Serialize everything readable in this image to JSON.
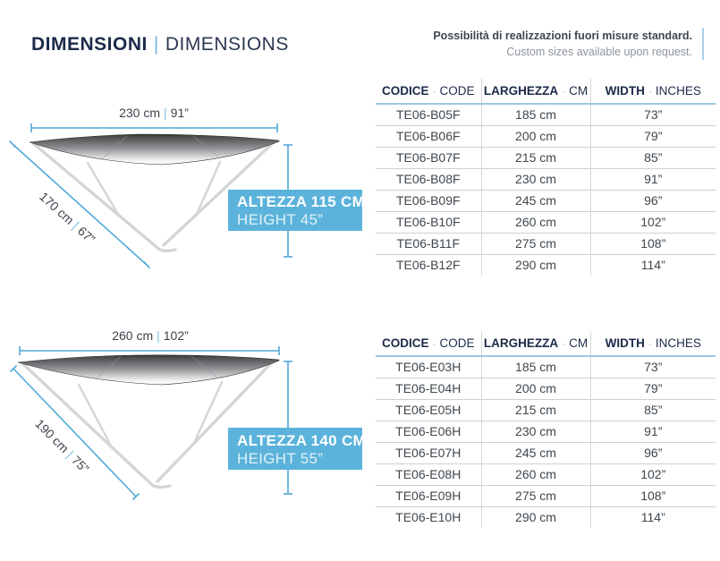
{
  "header": {
    "title_primary": "DIMENSIONI",
    "title_separator": "|",
    "title_secondary": "DIMENSIONS",
    "note_line1": "Possibilità di realizzazioni fuori misure standard.",
    "note_line2": "Custom sizes available upon request."
  },
  "diagrams": [
    {
      "width_cm": "230 cm",
      "width_sep": "|",
      "width_in": "91”",
      "depth_cm": "170 cm",
      "depth_sep": "|",
      "depth_in": "67”",
      "height_line1": "ALTEZZA 115 CM",
      "height_line2": "HEIGHT 45”"
    },
    {
      "width_cm": "260 cm",
      "width_sep": "|",
      "width_in": "102”",
      "depth_cm": "190 cm",
      "depth_sep": "|",
      "depth_in": "75”",
      "height_line1": "ALTEZZA 140 CM",
      "height_line2": "HEIGHT 55”"
    }
  ],
  "tables": [
    {
      "headers": [
        {
          "strong": "CODICE",
          "sep": "·",
          "rest": "CODE"
        },
        {
          "strong": "LARGHEZZA",
          "sep": "·",
          "rest": "CM"
        },
        {
          "strong": "WIDTH",
          "sep": "·",
          "rest": "INCHES"
        }
      ],
      "rows": [
        [
          "TE06-B05F",
          "185 cm",
          "73”"
        ],
        [
          "TE06-B06F",
          "200 cm",
          "79”"
        ],
        [
          "TE06-B07F",
          "215 cm",
          "85”"
        ],
        [
          "TE06-B08F",
          "230 cm",
          "91”"
        ],
        [
          "TE06-B09F",
          "245 cm",
          "96”"
        ],
        [
          "TE06-B10F",
          "260 cm",
          "102”"
        ],
        [
          "TE06-B11F",
          "275 cm",
          "108”"
        ],
        [
          "TE06-B12F",
          "290 cm",
          "114”"
        ]
      ]
    },
    {
      "headers": [
        {
          "strong": "CODICE",
          "sep": "·",
          "rest": "CODE"
        },
        {
          "strong": "LARGHEZZA",
          "sep": "·",
          "rest": "CM"
        },
        {
          "strong": "WIDTH",
          "sep": "·",
          "rest": "INCHES"
        }
      ],
      "rows": [
        [
          "TE06-E03H",
          "185 cm",
          "73”"
        ],
        [
          "TE06-E04H",
          "200 cm",
          "79”"
        ],
        [
          "TE06-E05H",
          "215 cm",
          "85”"
        ],
        [
          "TE06-E06H",
          "230 cm",
          "91”"
        ],
        [
          "TE06-E07H",
          "245 cm",
          "96”"
        ],
        [
          "TE06-E08H",
          "260 cm",
          "102”"
        ],
        [
          "TE06-E09H",
          "275 cm",
          "108”"
        ],
        [
          "TE06-E10H",
          "290 cm",
          "114”"
        ]
      ]
    }
  ],
  "colors": {
    "navy": "#1c2b4a",
    "dimension_blue": "#4fa9d7",
    "badge_blue": "#5bb3db",
    "header_rule_blue": "#9cc6df",
    "text_dark": "#3c434b",
    "text_gray": "#8d949b"
  }
}
